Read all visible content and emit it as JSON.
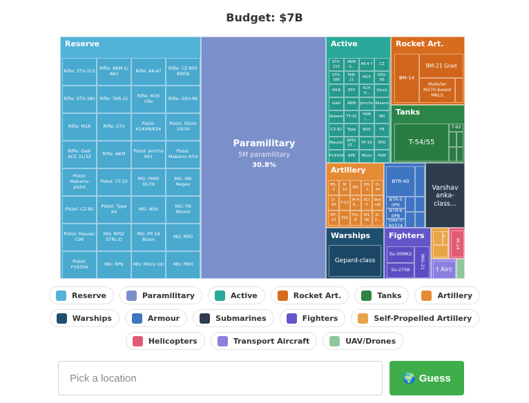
{
  "header": {
    "title": "Budget: $7B"
  },
  "treemap": {
    "reserve": {
      "label": "Reserve",
      "items": [
        "Rifle: STV-215",
        "Rifle: AKM-1/ AKn",
        "Rifle: AK-47",
        "Rifle: CZ 805 BREN",
        "Rifle: STV-380",
        "Rifle: TAR-21",
        "Rifle: M16 rifle",
        "Rifle: OSV-96",
        "Rifle: M18",
        "Rifle: STV",
        "Pistol: K14VN/K54",
        "Pistol: Glock 19/34",
        "Rifle: Galil ACE 31/32",
        "Rifle: AKM",
        "Pistol: Jericho 941",
        "Pistol: Makarov K59",
        "Pistol: Makarov pistol",
        "Pistol: TT-33",
        "MG: PKM/ DL7N",
        "MG: IWI Negev",
        "Pistol: CZ-82",
        "Pistol: Type 64",
        "MG: NSV",
        "MG: FN Minimi",
        "Pistol: Mauser C96",
        "MG: RPD/ STRL-D",
        "MG: PP-19 Bizon",
        "MG: RPD",
        "Pistol: P1935A",
        "MG: RPK",
        "MG: Micro Uzi",
        "MG: PKM"
      ]
    },
    "paramilitary": {
      "label": "Paramilitary",
      "sub": "5M paramilitary",
      "pct": "30.8%"
    },
    "active": {
      "label": "Active",
      "items": [
        "STV-215",
        "AKM -1...",
        "AK-4 7",
        "CZ",
        "STV-380",
        "TAR-21",
        "M16",
        "OSV-96",
        "M18",
        "STV",
        "K14 V...",
        "Glock",
        "Galil",
        "AKM",
        "Jericho",
        "Makarov",
        "Makarov",
        "TT-33",
        "PKM /...",
        "IWI",
        "CZ-82",
        "Type",
        "NSV",
        "FN",
        "Mauser",
        "RPD/ ST...",
        "PP-19",
        "RPD",
        "P1935A",
        "RPK",
        "Micro",
        "PKM"
      ]
    },
    "rocket": {
      "label": "Rocket Art.",
      "items": [
        "BM-14",
        "BM-21 Grad",
        "Modular M270-based MRLS"
      ]
    },
    "tanks": {
      "label": "Tanks",
      "items": [
        "T-54/55",
        "T-62"
      ]
    },
    "artillery": {
      "label": "Artillery",
      "items": [
        "B5-3",
        "M 10",
        "M2",
        "ZIS -3",
        "D-44",
        "D-30",
        "T-12",
        "M-4 6...",
        "SCI 0",
        "Bra ndt",
        "MT-12",
        "2S1",
        "Fly- K",
        "M1 06",
        "D-2..."
      ]
    },
    "warships": {
      "label": "Warships",
      "items": [
        "Gepard-class"
      ]
    },
    "armour": {
      "items": [
        "BTR-40",
        "BTR-5 0PK",
        "BTR-6 0PB",
        "GAZ-5 9037A"
      ]
    },
    "submarines": {
      "items": [
        "Varshav anka-class..."
      ]
    },
    "fighters": {
      "label": "Fighters",
      "items": [
        "Su-30MK2",
        "Su-27SK",
        "MiG-21"
      ]
    },
    "spa": {
      "items": [
        "M 6..."
      ]
    },
    "helicopters": {
      "items": [
        "Mi-24"
      ]
    },
    "transport": {
      "items": [
        "t Airc"
      ]
    }
  },
  "legend": [
    {
      "label": "Reserve",
      "color": "#52b3d9"
    },
    {
      "label": "Paramilitary",
      "color": "#7b8fcb"
    },
    {
      "label": "Active",
      "color": "#2aa89a"
    },
    {
      "label": "Rocket Art.",
      "color": "#d96b1e"
    },
    {
      "label": "Tanks",
      "color": "#2c8447"
    },
    {
      "label": "Artillery",
      "color": "#e58b35"
    },
    {
      "label": "Warships",
      "color": "#1f4f6e"
    },
    {
      "label": "Armour",
      "color": "#3e74c2"
    },
    {
      "label": "Submarines",
      "color": "#2f3c4d"
    },
    {
      "label": "Fighters",
      "color": "#6356c9"
    },
    {
      "label": "Self-Propelled Artillery",
      "color": "#e9a447"
    },
    {
      "label": "Helicopters",
      "color": "#e15b75"
    },
    {
      "label": "Transport Aircraft",
      "color": "#8b7fe0"
    },
    {
      "label": "UAV/Drones",
      "color": "#8fc79a"
    }
  ],
  "search": {
    "placeholder": "Pick a location"
  },
  "guess": {
    "icon": "globe-icon",
    "label": "Guess"
  }
}
